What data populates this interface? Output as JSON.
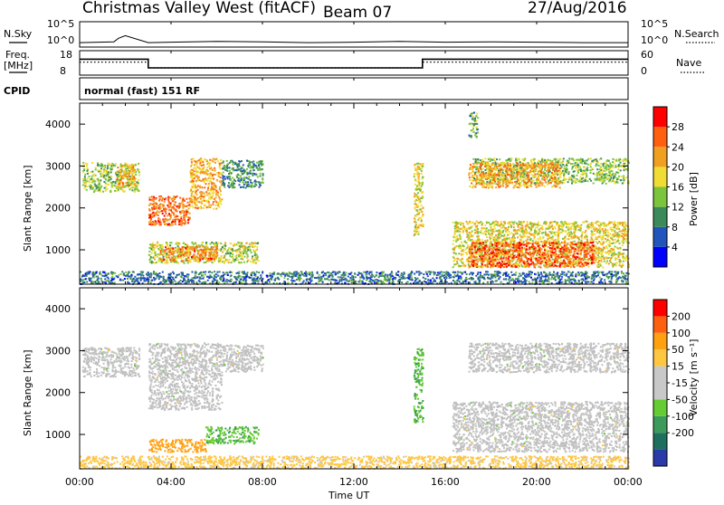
{
  "header": {
    "title": "Christmas Valley West (fitACF)",
    "beam": "Beam 07",
    "date": "27/Aug/2016"
  },
  "sky_panel": {
    "left_label": "N.Sky",
    "right_label": "N.Search",
    "left_ticks": [
      "10^5",
      "10^0"
    ],
    "right_ticks": [
      "10^5",
      "10^0"
    ]
  },
  "freq_panel": {
    "left_label_1": "Freq.",
    "left_label_2": "[MHz]",
    "right_label": "Nave",
    "left_ticks": [
      "18",
      "8"
    ],
    "right_ticks": [
      "60",
      "0"
    ]
  },
  "cpid": {
    "label": "CPID",
    "value": "normal (fast) 151 RF"
  },
  "colors": {
    "power": [
      "#0000ff",
      "#2255bb",
      "#3c8a5a",
      "#7cc43c",
      "#f0dc32",
      "#f0a020",
      "#ff6010",
      "#ff0000"
    ],
    "velocity": [
      "#ff0000",
      "#ff6010",
      "#ffa010",
      "#ffc640",
      "#c8c8c8",
      "#c8c8c8",
      "#66cc33",
      "#3c9a5a",
      "#1f6f5f",
      "#2a3aa8"
    ],
    "ground_scatter": "#c0c0c0"
  },
  "chart_data": [
    {
      "type": "line",
      "title": "N.Sky / N.Search",
      "x_unit": "hours UT",
      "xlim": [
        0,
        24
      ],
      "series": [
        {
          "name": "N.Sky",
          "x": [
            0,
            1.5,
            1.7,
            2,
            3,
            4,
            6,
            8,
            10,
            12,
            14,
            16,
            18,
            20,
            22,
            24
          ],
          "values": [
            0.6,
            0.8,
            1.6,
            2.2,
            0.6,
            0.7,
            0.9,
            0.8,
            0.6,
            0.7,
            0.9,
            0.7,
            0.8,
            0.7,
            0.6,
            0.6
          ]
        }
      ],
      "ylim_log10": [
        0,
        5
      ]
    },
    {
      "type": "line",
      "title": "Freq. / Nave",
      "x_unit": "hours UT",
      "xlim": [
        0,
        24
      ],
      "series": [
        {
          "name": "Freq.",
          "x": [
            0,
            3,
            3,
            15,
            15,
            24
          ],
          "values": [
            14.5,
            14.5,
            10.5,
            10.5,
            14.5,
            14.5
          ]
        },
        {
          "name": "Nave",
          "x": [
            0,
            3,
            3,
            15,
            15,
            24
          ],
          "values": [
            31,
            31,
            15,
            15,
            31,
            31
          ]
        }
      ],
      "ylim_freq": [
        8,
        18
      ],
      "ylim_nave": [
        0,
        60
      ]
    },
    {
      "type": "heatmap",
      "title": "Power",
      "ylabel": "Slant Range [km]",
      "xlim": [
        0,
        24
      ],
      "ylim": [
        180,
        4500
      ],
      "yticks": [
        1000,
        2000,
        3000,
        4000
      ],
      "colorbar": {
        "label": "Power [dB]",
        "ticks": [
          4,
          8,
          12,
          16,
          20,
          24,
          28
        ],
        "range": [
          0,
          32
        ]
      },
      "regions": [
        {
          "t0": 0.1,
          "t1": 2.6,
          "r0": 2400,
          "r1": 3100,
          "level": 15
        },
        {
          "t0": 1.6,
          "t1": 2.4,
          "r0": 2500,
          "r1": 3050,
          "level": 22
        },
        {
          "t0": 3.0,
          "t1": 4.8,
          "r0": 1600,
          "r1": 2300,
          "level": 25
        },
        {
          "t0": 4.8,
          "t1": 6.2,
          "r0": 2000,
          "r1": 3200,
          "level": 21
        },
        {
          "t0": 3.0,
          "t1": 7.8,
          "r0": 700,
          "r1": 1200,
          "level": 16
        },
        {
          "t0": 3.5,
          "t1": 6.0,
          "r0": 750,
          "r1": 1100,
          "level": 24
        },
        {
          "t0": 6.2,
          "t1": 8.0,
          "r0": 2500,
          "r1": 3150,
          "level": 10
        },
        {
          "t0": 14.6,
          "t1": 15.0,
          "r0": 1300,
          "r1": 3100,
          "level": 18
        },
        {
          "t0": 16.3,
          "t1": 24.0,
          "r0": 600,
          "r1": 1700,
          "level": 18
        },
        {
          "t0": 17.0,
          "t1": 22.5,
          "r0": 600,
          "r1": 1200,
          "level": 26
        },
        {
          "t0": 17.2,
          "t1": 24.0,
          "r0": 2600,
          "r1": 3200,
          "level": 14
        },
        {
          "t0": 17.0,
          "t1": 21.0,
          "r0": 2500,
          "r1": 3100,
          "level": 22
        },
        {
          "t0": 17.0,
          "t1": 17.4,
          "r0": 3700,
          "r1": 4300,
          "level": 12
        },
        {
          "t0": 0.0,
          "t1": 24.0,
          "r0": 200,
          "r1": 500,
          "level": 8
        }
      ]
    },
    {
      "type": "heatmap",
      "title": "Velocity",
      "ylabel": "Slant Range [km]",
      "xlabel": "Time UT",
      "xlim": [
        0,
        24
      ],
      "xticks": [
        "00:00",
        "04:00",
        "08:00",
        "12:00",
        "16:00",
        "20:00",
        "00:00"
      ],
      "ylim": [
        180,
        4500
      ],
      "yticks": [
        1000,
        2000,
        3000,
        4000
      ],
      "colorbar": {
        "label": "Velocity [m s⁻¹]",
        "ticks": [
          200,
          100,
          50,
          15,
          -15,
          -50,
          -100,
          -200
        ]
      },
      "regions": [
        {
          "t0": 0.1,
          "t1": 2.6,
          "r0": 2400,
          "r1": 3100,
          "vel": 0
        },
        {
          "t0": 3.0,
          "t1": 6.2,
          "r0": 1600,
          "r1": 3200,
          "vel": 0
        },
        {
          "t0": 6.2,
          "t1": 8.0,
          "r0": 2500,
          "r1": 3150,
          "vel": 0
        },
        {
          "t0": 3.0,
          "t1": 5.5,
          "r0": 600,
          "r1": 900,
          "vel": -70
        },
        {
          "t0": 5.5,
          "t1": 7.8,
          "r0": 800,
          "r1": 1200,
          "vel": 40
        },
        {
          "t0": 14.6,
          "t1": 15.0,
          "r0": 1300,
          "r1": 3100,
          "vel": 45
        },
        {
          "t0": 16.3,
          "t1": 24.0,
          "r0": 600,
          "r1": 1800,
          "vel": 0
        },
        {
          "t0": 17.0,
          "t1": 24.0,
          "r0": 2500,
          "r1": 3200,
          "vel": 0
        },
        {
          "t0": 0.0,
          "t1": 24.0,
          "r0": 200,
          "r1": 500,
          "vel": -30
        }
      ]
    }
  ],
  "axis_labels": {
    "slant_range": "Slant Range [km]",
    "time": "Time UT",
    "power_cb": "Power [dB]",
    "velocity_cb": "Velocity [m s⁻¹]"
  },
  "xticks": [
    "00:00",
    "04:00",
    "08:00",
    "12:00",
    "16:00",
    "20:00",
    "00:00"
  ],
  "yticks": [
    "1000",
    "2000",
    "3000",
    "4000"
  ],
  "power_cb_ticks": [
    "4",
    "8",
    "12",
    "16",
    "20",
    "24",
    "28"
  ],
  "velocity_cb_ticks": [
    "200",
    "100",
    "50",
    "15",
    "-15",
    "-50",
    "-100",
    "-200"
  ]
}
